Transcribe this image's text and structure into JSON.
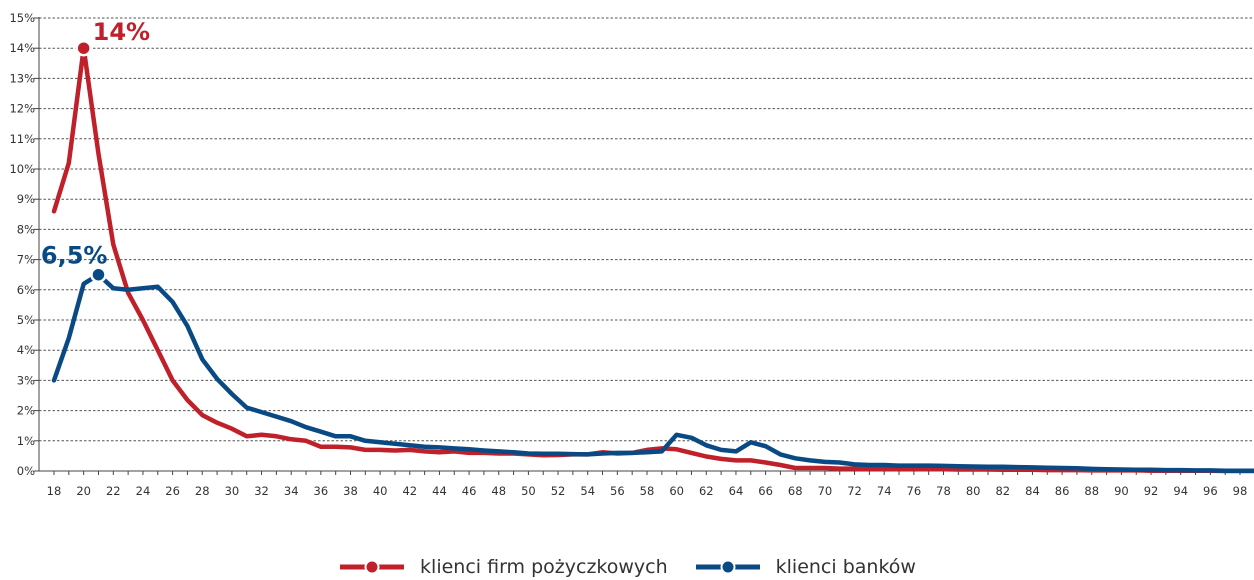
{
  "chart_data": {
    "type": "line",
    "title": "",
    "xlabel": "",
    "ylabel": "",
    "x": [
      18,
      19,
      20,
      21,
      22,
      23,
      24,
      25,
      26,
      27,
      28,
      29,
      30,
      31,
      32,
      33,
      34,
      35,
      36,
      37,
      38,
      39,
      40,
      41,
      42,
      43,
      44,
      45,
      46,
      47,
      48,
      49,
      50,
      51,
      52,
      53,
      54,
      55,
      56,
      57,
      58,
      59,
      60,
      61,
      62,
      63,
      64,
      65,
      66,
      67,
      68,
      69,
      70,
      71,
      72,
      73,
      74,
      75,
      76,
      77,
      78,
      79,
      80,
      81,
      82,
      83,
      84,
      85,
      86,
      87,
      88,
      89,
      90,
      91,
      92,
      93,
      94,
      95,
      96,
      97,
      98,
      99
    ],
    "x_tick_labels": [
      "18",
      "20",
      "22",
      "24",
      "26",
      "28",
      "30",
      "32",
      "34",
      "36",
      "38",
      "40",
      "42",
      "44",
      "46",
      "48",
      "50",
      "52",
      "54",
      "56",
      "58",
      "60",
      "62",
      "64",
      "66",
      "68",
      "70",
      "72",
      "74",
      "76",
      "78",
      "80",
      "82",
      "84",
      "86",
      "88",
      "90",
      "92",
      "94",
      "96",
      "98"
    ],
    "y_tick_labels": [
      "0%",
      "1%",
      "2%",
      "3%",
      "4%",
      "5%",
      "6%",
      "7%",
      "8%",
      "9%",
      "10%",
      "11%",
      "12%",
      "13%",
      "14%",
      "15%"
    ],
    "ylim": [
      0,
      15
    ],
    "xlim": [
      18,
      99
    ],
    "grid": "horizontal-dashed",
    "legend_position": "bottom-center",
    "series": [
      {
        "name": "klienci firm pożyczkowych",
        "color": "#c0202a",
        "values": [
          8.6,
          10.2,
          14.0,
          10.5,
          7.5,
          5.9,
          5.0,
          4.0,
          3.0,
          2.35,
          1.85,
          1.6,
          1.4,
          1.15,
          1.2,
          1.15,
          1.05,
          1.0,
          0.8,
          0.8,
          0.78,
          0.7,
          0.7,
          0.68,
          0.7,
          0.65,
          0.62,
          0.65,
          0.6,
          0.6,
          0.58,
          0.58,
          0.55,
          0.52,
          0.53,
          0.55,
          0.55,
          0.62,
          0.58,
          0.6,
          0.7,
          0.75,
          0.72,
          0.6,
          0.48,
          0.4,
          0.35,
          0.35,
          0.28,
          0.2,
          0.1,
          0.1,
          0.1,
          0.08,
          0.08,
          0.07,
          0.07,
          0.07,
          0.07,
          0.06,
          0.06,
          0.05,
          0.05,
          0.05,
          0.04,
          0.04,
          0.04,
          0.03,
          0.03,
          0.03,
          0.02,
          0.02,
          0.02,
          0.02,
          0.01,
          0.01,
          0.01,
          0.01,
          0.01,
          0.0,
          0.0,
          0.0
        ]
      },
      {
        "name": "klienci banków",
        "color": "#0a4a84",
        "values": [
          3.0,
          4.4,
          6.2,
          6.5,
          6.05,
          6.0,
          6.05,
          6.1,
          5.6,
          4.8,
          3.7,
          3.05,
          2.55,
          2.1,
          1.95,
          1.8,
          1.65,
          1.45,
          1.3,
          1.15,
          1.15,
          1.0,
          0.95,
          0.9,
          0.85,
          0.8,
          0.78,
          0.75,
          0.72,
          0.68,
          0.65,
          0.62,
          0.58,
          0.57,
          0.57,
          0.56,
          0.55,
          0.58,
          0.6,
          0.6,
          0.62,
          0.65,
          1.2,
          1.1,
          0.85,
          0.7,
          0.65,
          0.95,
          0.82,
          0.55,
          0.42,
          0.35,
          0.3,
          0.28,
          0.22,
          0.2,
          0.2,
          0.18,
          0.18,
          0.18,
          0.17,
          0.16,
          0.15,
          0.14,
          0.14,
          0.13,
          0.12,
          0.11,
          0.1,
          0.09,
          0.07,
          0.06,
          0.05,
          0.04,
          0.04,
          0.03,
          0.03,
          0.02,
          0.02,
          0.01,
          0.01,
          0.01
        ]
      }
    ],
    "annotations": [
      {
        "series": 0,
        "x": 20,
        "y": 14.0,
        "text": "14%"
      },
      {
        "series": 1,
        "x": 21,
        "y": 6.5,
        "text": "6,5%"
      }
    ]
  }
}
